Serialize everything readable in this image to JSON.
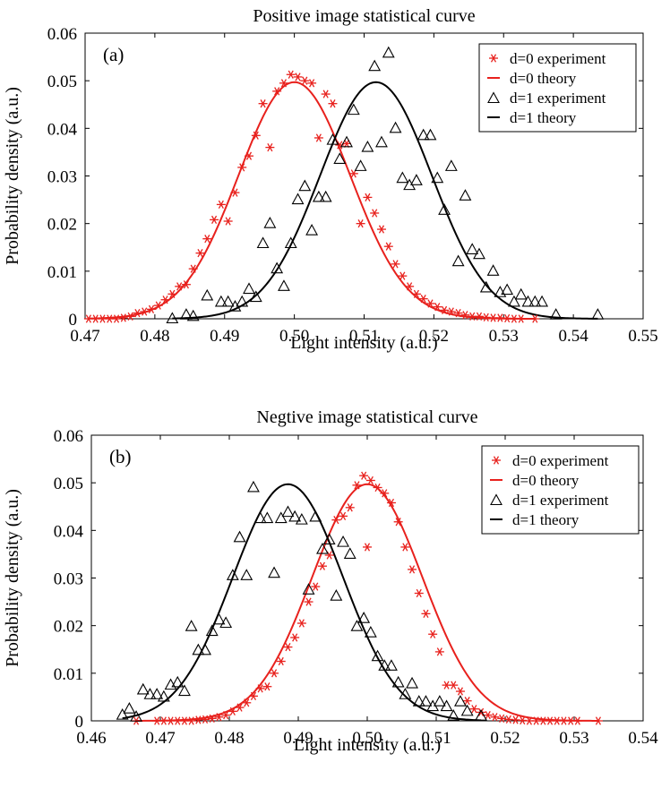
{
  "chart_data": [
    {
      "type": "line",
      "panel_label": "(a)",
      "title": "Positive image statistical curve",
      "xlabel": "Light intensity (a.u.)",
      "ylabel": "Probability density (a.u.)",
      "xlim": [
        0.47,
        0.55
      ],
      "ylim": [
        0,
        0.06
      ],
      "xticks": [
        0.47,
        0.48,
        0.49,
        0.5,
        0.51,
        0.52,
        0.53,
        0.54,
        0.55
      ],
      "xtick_labels": [
        "0.47",
        "0.48",
        "0.49",
        "0.50",
        "0.51",
        "0.52",
        "0.53",
        "0.54",
        "0.55"
      ],
      "yticks": [
        0,
        0.01,
        0.02,
        0.03,
        0.04,
        0.05,
        0.06
      ],
      "ytick_labels": [
        "0",
        "0.01",
        "0.02",
        "0.03",
        "0.04",
        "0.05",
        "0.06"
      ],
      "legend_position": "top-right",
      "series": [
        {
          "name": "d=0 experiment",
          "kind": "scatter",
          "marker": "asterisk",
          "color": "#e8211d",
          "x": [
            0.4705,
            0.4715,
            0.4725,
            0.4735,
            0.4745,
            0.4755,
            0.4765,
            0.4775,
            0.4785,
            0.4795,
            0.4805,
            0.4815,
            0.4825,
            0.4835,
            0.4845,
            0.4855,
            0.4865,
            0.4875,
            0.4885,
            0.4895,
            0.4905,
            0.4915,
            0.4925,
            0.4935,
            0.4945,
            0.4955,
            0.4965,
            0.4975,
            0.4985,
            0.4995,
            0.5005,
            0.5015,
            0.5025,
            0.5035,
            0.5045,
            0.5055,
            0.5065,
            0.5075,
            0.5085,
            0.5095,
            0.5105,
            0.5115,
            0.5125,
            0.5135,
            0.5145,
            0.5155,
            0.5165,
            0.5175,
            0.5185,
            0.5195,
            0.5205,
            0.5215,
            0.5225,
            0.5235,
            0.5245,
            0.5255,
            0.5265,
            0.5275,
            0.5285,
            0.5295,
            0.5305,
            0.5315,
            0.5325,
            0.5345
          ],
          "y": [
            0.0,
            0.0,
            0.0,
            0.0,
            0.0,
            0.0002,
            0.0005,
            0.0012,
            0.0015,
            0.002,
            0.0028,
            0.004,
            0.0052,
            0.0068,
            0.0072,
            0.0105,
            0.0138,
            0.0168,
            0.0208,
            0.024,
            0.0205,
            0.0265,
            0.0318,
            0.0342,
            0.0385,
            0.0452,
            0.036,
            0.0478,
            0.0495,
            0.0513,
            0.0508,
            0.05,
            0.0495,
            0.038,
            0.0472,
            0.0452,
            0.0365,
            0.0368,
            0.0305,
            0.02,
            0.0255,
            0.0222,
            0.0188,
            0.0152,
            0.0115,
            0.009,
            0.0068,
            0.0052,
            0.0042,
            0.0032,
            0.0025,
            0.0018,
            0.0015,
            0.0012,
            0.0008,
            0.0005,
            0.0005,
            0.0003,
            0.0002,
            0.0002,
            0.0001,
            0.0,
            0.0,
            0.0
          ]
        },
        {
          "name": "d=0 theory",
          "kind": "gaussian",
          "color": "#e8211d",
          "mu": 0.5,
          "sigma": 0.008,
          "peak": 0.0497,
          "range": [
            0.4705,
            0.5345
          ]
        },
        {
          "name": "d=1 experiment",
          "kind": "scatter",
          "marker": "triangle",
          "color": "#000000",
          "x": [
            0.4825,
            0.4845,
            0.4855,
            0.4875,
            0.4895,
            0.4905,
            0.4915,
            0.4925,
            0.4935,
            0.4945,
            0.4955,
            0.4965,
            0.4975,
            0.4985,
            0.4995,
            0.5005,
            0.5015,
            0.5025,
            0.5035,
            0.5045,
            0.5055,
            0.5065,
            0.5075,
            0.5085,
            0.5095,
            0.5105,
            0.5115,
            0.5125,
            0.5135,
            0.5145,
            0.5155,
            0.5165,
            0.5175,
            0.5185,
            0.5195,
            0.5205,
            0.5215,
            0.5225,
            0.5235,
            0.5245,
            0.5255,
            0.5265,
            0.5275,
            0.5285,
            0.5295,
            0.5305,
            0.5315,
            0.5325,
            0.5335,
            0.5345,
            0.5355,
            0.5375,
            0.5435
          ],
          "y": [
            0.0,
            0.0008,
            0.0005,
            0.0048,
            0.0035,
            0.0035,
            0.0025,
            0.0035,
            0.0062,
            0.0045,
            0.0158,
            0.02,
            0.0105,
            0.0068,
            0.0158,
            0.025,
            0.0278,
            0.0185,
            0.0255,
            0.0255,
            0.0375,
            0.0335,
            0.037,
            0.0438,
            0.032,
            0.036,
            0.053,
            0.037,
            0.0558,
            0.04,
            0.0295,
            0.028,
            0.029,
            0.0385,
            0.0385,
            0.0295,
            0.0228,
            0.032,
            0.012,
            0.0258,
            0.0145,
            0.0135,
            0.0065,
            0.01,
            0.0055,
            0.006,
            0.0035,
            0.005,
            0.0035,
            0.0035,
            0.0035,
            0.0008,
            0.0008
          ]
        },
        {
          "name": "d=1 theory",
          "kind": "gaussian",
          "color": "#000000",
          "mu": 0.5117,
          "sigma": 0.008,
          "peak": 0.0497,
          "range": [
            0.4825,
            0.5435
          ]
        }
      ]
    },
    {
      "type": "line",
      "panel_label": "(b)",
      "title": "Negtive image statistical curve",
      "xlabel": "Light intensity (a.u.)",
      "ylabel": "Probability density (a.u.)",
      "xlim": [
        0.46,
        0.54
      ],
      "ylim": [
        0,
        0.06
      ],
      "xticks": [
        0.46,
        0.47,
        0.48,
        0.49,
        0.5,
        0.51,
        0.52,
        0.53,
        0.54
      ],
      "xtick_labels": [
        "0.46",
        "0.47",
        "0.48",
        "0.49",
        "0.50",
        "0.51",
        "0.52",
        "0.53",
        "0.54"
      ],
      "yticks": [
        0,
        0.01,
        0.02,
        0.03,
        0.04,
        0.05,
        0.06
      ],
      "ytick_labels": [
        "0",
        "0.01",
        "0.02",
        "0.03",
        "0.04",
        "0.05",
        "0.06"
      ],
      "legend_position": "top-right",
      "series": [
        {
          "name": "d=0 experiment",
          "kind": "scatter",
          "marker": "asterisk",
          "color": "#e8211d",
          "x": [
            0.4665,
            0.4695,
            0.4705,
            0.4715,
            0.4725,
            0.4735,
            0.4745,
            0.4755,
            0.4765,
            0.4775,
            0.4785,
            0.4795,
            0.4805,
            0.4815,
            0.4825,
            0.4835,
            0.4845,
            0.4855,
            0.4865,
            0.4875,
            0.4885,
            0.4895,
            0.4905,
            0.4915,
            0.4925,
            0.4935,
            0.4945,
            0.4955,
            0.4965,
            0.4975,
            0.4985,
            0.4995,
            0.5,
            0.5005,
            0.5015,
            0.5025,
            0.5035,
            0.5045,
            0.5055,
            0.5065,
            0.5075,
            0.5085,
            0.5095,
            0.5105,
            0.5115,
            0.5125,
            0.5135,
            0.5145,
            0.5155,
            0.5165,
            0.5175,
            0.5185,
            0.5195,
            0.5205,
            0.5215,
            0.5225,
            0.5235,
            0.5245,
            0.5255,
            0.5265,
            0.5275,
            0.5285,
            0.5295,
            0.5305,
            0.5335
          ],
          "y": [
            0.0,
            0.0,
            0.0,
            0.0,
            0.0,
            0.0,
            0.0,
            0.0002,
            0.0003,
            0.0005,
            0.0008,
            0.0012,
            0.002,
            0.0028,
            0.0038,
            0.0052,
            0.0068,
            0.0072,
            0.01,
            0.0125,
            0.0155,
            0.0175,
            0.0205,
            0.025,
            0.0282,
            0.0325,
            0.0348,
            0.0422,
            0.043,
            0.0448,
            0.0495,
            0.0515,
            0.0365,
            0.0505,
            0.049,
            0.0478,
            0.0458,
            0.0418,
            0.0365,
            0.0318,
            0.0268,
            0.0225,
            0.0182,
            0.0145,
            0.0075,
            0.0075,
            0.0062,
            0.0042,
            0.0025,
            0.0018,
            0.0012,
            0.0008,
            0.0005,
            0.0003,
            0.0002,
            0.0001,
            0.0,
            0.0,
            0.0,
            0.0,
            0.0,
            0.0,
            0.0,
            0.0,
            0.0
          ]
        },
        {
          "name": "d=0 theory",
          "kind": "gaussian",
          "color": "#e8211d",
          "mu": 0.5,
          "sigma": 0.008,
          "peak": 0.0497,
          "range": [
            0.4665,
            0.5335
          ]
        },
        {
          "name": "d=1 experiment",
          "kind": "scatter",
          "marker": "triangle",
          "color": "#000000",
          "x": [
            0.4645,
            0.4655,
            0.4665,
            0.4675,
            0.4685,
            0.4695,
            0.4705,
            0.4715,
            0.4725,
            0.4735,
            0.4745,
            0.4755,
            0.4765,
            0.4775,
            0.4785,
            0.4795,
            0.4805,
            0.4815,
            0.4825,
            0.4835,
            0.4845,
            0.4855,
            0.4865,
            0.4875,
            0.4885,
            0.4895,
            0.4905,
            0.4915,
            0.4925,
            0.4935,
            0.4945,
            0.4955,
            0.4965,
            0.4975,
            0.4985,
            0.4995,
            0.5005,
            0.5015,
            0.5025,
            0.5035,
            0.5045,
            0.5055,
            0.5065,
            0.5075,
            0.5085,
            0.5095,
            0.5105,
            0.5115,
            0.5125,
            0.5135,
            0.5145,
            0.5165
          ],
          "y": [
            0.0012,
            0.0025,
            0.0008,
            0.0065,
            0.0055,
            0.0055,
            0.005,
            0.0075,
            0.008,
            0.0062,
            0.0198,
            0.0148,
            0.0148,
            0.0188,
            0.0212,
            0.0205,
            0.0305,
            0.0385,
            0.0305,
            0.049,
            0.0425,
            0.0425,
            0.031,
            0.0425,
            0.0438,
            0.0428,
            0.0422,
            0.0275,
            0.0428,
            0.036,
            0.038,
            0.0262,
            0.0375,
            0.035,
            0.0198,
            0.0215,
            0.0185,
            0.0135,
            0.0115,
            0.0115,
            0.008,
            0.0055,
            0.0078,
            0.004,
            0.004,
            0.003,
            0.004,
            0.003,
            0.001,
            0.004,
            0.002,
            0.001
          ]
        },
        {
          "name": "d=1 theory",
          "kind": "gaussian",
          "color": "#000000",
          "mu": 0.4885,
          "sigma": 0.008,
          "peak": 0.0497,
          "range": [
            0.4645,
            0.5165
          ]
        }
      ]
    }
  ]
}
